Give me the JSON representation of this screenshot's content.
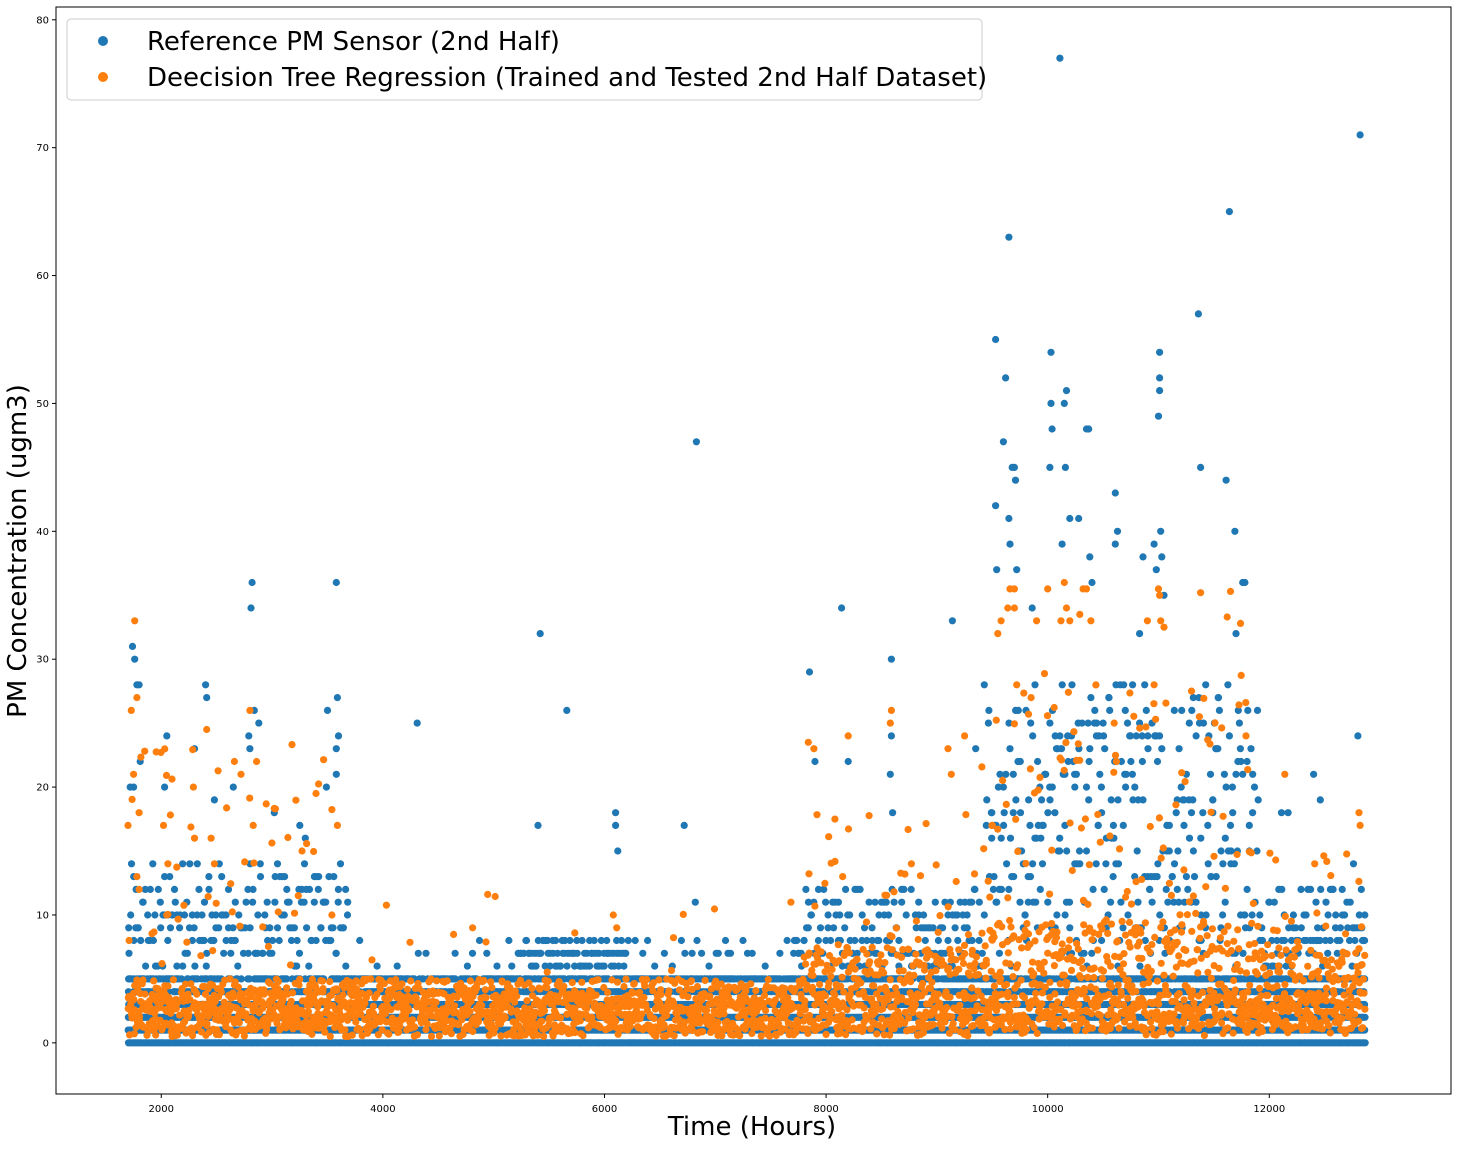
{
  "chart_data": {
    "type": "scatter",
    "xlabel": "Time (Hours)",
    "ylabel": "PM Concentration (ugm3)",
    "xlim": [
      1050,
      13640
    ],
    "ylim": [
      -4,
      81
    ],
    "x_ticks": [
      2000,
      4000,
      6000,
      8000,
      10000,
      12000
    ],
    "x_tick_labels": [
      "2000",
      "4000",
      "6000",
      "8000",
      "10000",
      "12000"
    ],
    "y_ticks": [
      0,
      10,
      20,
      30,
      40,
      50,
      60,
      70,
      80
    ],
    "y_tick_labels": [
      "0",
      "10",
      "20",
      "30",
      "40",
      "50",
      "60",
      "70",
      "80"
    ],
    "grid": false,
    "legend_position": "top-left",
    "series": [
      {
        "name": "Reference PM Sensor (2nd Half)",
        "color": "#1f77b4",
        "points": [
          [
            1740,
            31
          ],
          [
            1760,
            30
          ],
          [
            1780,
            28
          ],
          [
            1800,
            28
          ],
          [
            1810,
            22
          ],
          [
            1750,
            20
          ],
          [
            1720,
            20
          ],
          [
            2050,
            24
          ],
          [
            2030,
            20
          ],
          [
            2300,
            23
          ],
          [
            2400,
            28
          ],
          [
            2410,
            27
          ],
          [
            2480,
            19
          ],
          [
            2650,
            20
          ],
          [
            2790,
            24
          ],
          [
            2800,
            23
          ],
          [
            2810,
            34
          ],
          [
            2820,
            36
          ],
          [
            2840,
            26
          ],
          [
            2880,
            25
          ],
          [
            3020,
            18
          ],
          [
            3250,
            17
          ],
          [
            3300,
            16
          ],
          [
            3500,
            26
          ],
          [
            3490,
            20
          ],
          [
            3580,
            36
          ],
          [
            3590,
            27
          ],
          [
            3600,
            24
          ],
          [
            3580,
            23
          ],
          [
            3580,
            21
          ],
          [
            4310,
            25
          ],
          [
            5400,
            17
          ],
          [
            5420,
            32
          ],
          [
            5660,
            26
          ],
          [
            6100,
            18
          ],
          [
            6100,
            17
          ],
          [
            6120,
            15
          ],
          [
            6720,
            17
          ],
          [
            6830,
            47
          ],
          [
            6820,
            11
          ],
          [
            7850,
            29
          ],
          [
            7900,
            22
          ],
          [
            8140,
            34
          ],
          [
            8200,
            22
          ],
          [
            8590,
            30
          ],
          [
            8590,
            24
          ],
          [
            8580,
            21
          ],
          [
            8600,
            18
          ],
          [
            9140,
            33
          ],
          [
            9350,
            23
          ],
          [
            9530,
            55
          ],
          [
            9530,
            42
          ],
          [
            9540,
            37
          ],
          [
            9600,
            47
          ],
          [
            9620,
            52
          ],
          [
            9650,
            41
          ],
          [
            9650,
            63
          ],
          [
            9660,
            39
          ],
          [
            9680,
            45
          ],
          [
            9700,
            45
          ],
          [
            9710,
            44
          ],
          [
            9720,
            37
          ],
          [
            9860,
            34
          ],
          [
            10020,
            45
          ],
          [
            10030,
            54
          ],
          [
            10030,
            50
          ],
          [
            10040,
            48
          ],
          [
            10110,
            77
          ],
          [
            10130,
            39
          ],
          [
            10150,
            50
          ],
          [
            10160,
            45
          ],
          [
            10170,
            51
          ],
          [
            10200,
            41
          ],
          [
            10280,
            41
          ],
          [
            10350,
            48
          ],
          [
            10370,
            48
          ],
          [
            10380,
            38
          ],
          [
            10400,
            36
          ],
          [
            10610,
            43
          ],
          [
            10630,
            40
          ],
          [
            10610,
            39
          ],
          [
            10830,
            32
          ],
          [
            10860,
            38
          ],
          [
            10960,
            39
          ],
          [
            10980,
            37
          ],
          [
            11010,
            54
          ],
          [
            11010,
            52
          ],
          [
            11010,
            51
          ],
          [
            11000,
            49
          ],
          [
            11020,
            40
          ],
          [
            11030,
            38
          ],
          [
            11050,
            35
          ],
          [
            11360,
            57
          ],
          [
            11380,
            45
          ],
          [
            11610,
            44
          ],
          [
            11640,
            65
          ],
          [
            11690,
            40
          ],
          [
            11700,
            32
          ],
          [
            11760,
            36
          ],
          [
            11780,
            36
          ],
          [
            11720,
            26
          ],
          [
            11800,
            22
          ],
          [
            11900,
            19
          ],
          [
            12110,
            18
          ],
          [
            12170,
            18
          ],
          [
            12400,
            21
          ],
          [
            12460,
            19
          ],
          [
            12760,
            14
          ],
          [
            12800,
            24
          ],
          [
            12820,
            71
          ],
          [
            12830,
            12
          ],
          [
            12850,
            8
          ]
        ],
        "dense_bands": [
          {
            "x_start": 1700,
            "x_end": 12860,
            "y_levels": [
              0,
              1,
              2,
              3,
              4,
              5
            ]
          },
          {
            "x_start": 1700,
            "x_end": 12860,
            "y_levels": [
              6,
              7,
              8
            ],
            "sparse": true
          }
        ]
      },
      {
        "name": "Deecision Tree Regression (Trained and Tested 2nd Half Dataset)",
        "color": "#ff7f0e",
        "points": [
          [
            1700,
            17
          ],
          [
            1730,
            26
          ],
          [
            1760,
            33
          ],
          [
            1780,
            27
          ],
          [
            1750,
            21
          ],
          [
            1780,
            13
          ],
          [
            1800,
            12
          ],
          [
            1800,
            18
          ],
          [
            2020,
            17
          ],
          [
            2060,
            14
          ],
          [
            2050,
            10
          ],
          [
            2290,
            20
          ],
          [
            2300,
            16
          ],
          [
            2410,
            24.5
          ],
          [
            2450,
            16
          ],
          [
            2480,
            14
          ],
          [
            2660,
            22
          ],
          [
            2720,
            21
          ],
          [
            2800,
            26
          ],
          [
            2830,
            17
          ],
          [
            2860,
            22
          ],
          [
            3030,
            18.3
          ],
          [
            3270,
            15
          ],
          [
            3540,
            10
          ],
          [
            3590,
            17
          ],
          [
            4810,
            9
          ],
          [
            6080,
            10
          ],
          [
            6110,
            9
          ],
          [
            7840,
            23.5
          ],
          [
            7890,
            23
          ],
          [
            8080,
            17.5
          ],
          [
            8150,
            13
          ],
          [
            8200,
            24
          ],
          [
            8590,
            26
          ],
          [
            8580,
            25
          ],
          [
            8770,
            14
          ],
          [
            9100,
            23
          ],
          [
            9130,
            21
          ],
          [
            9250,
            24
          ],
          [
            9500,
            17
          ],
          [
            9550,
            32
          ],
          [
            9580,
            33
          ],
          [
            9640,
            34
          ],
          [
            9660,
            35.5
          ],
          [
            9700,
            35.5
          ],
          [
            9700,
            34
          ],
          [
            9720,
            28
          ],
          [
            9850,
            27
          ],
          [
            9900,
            33
          ],
          [
            10000,
            35.5
          ],
          [
            10120,
            33
          ],
          [
            10150,
            36
          ],
          [
            10170,
            34
          ],
          [
            10200,
            33
          ],
          [
            10290,
            33.5
          ],
          [
            10320,
            35.5
          ],
          [
            10350,
            35.5
          ],
          [
            10390,
            33
          ],
          [
            10600,
            25
          ],
          [
            10620,
            22
          ],
          [
            10900,
            33
          ],
          [
            10960,
            28
          ],
          [
            11000,
            35.5
          ],
          [
            11010,
            35
          ],
          [
            11020,
            33
          ],
          [
            11050,
            32.5
          ],
          [
            11380,
            35.2
          ],
          [
            11620,
            33.3
          ],
          [
            11650,
            35.3
          ],
          [
            11740,
            32.8
          ],
          [
            11790,
            24
          ],
          [
            12140,
            21
          ],
          [
            12410,
            14
          ],
          [
            12810,
            18
          ],
          [
            12820,
            17
          ]
        ],
        "dense_bands": [
          {
            "x_start": 1700,
            "x_end": 12860,
            "y_range": [
              0.5,
              5
            ]
          }
        ]
      }
    ]
  }
}
